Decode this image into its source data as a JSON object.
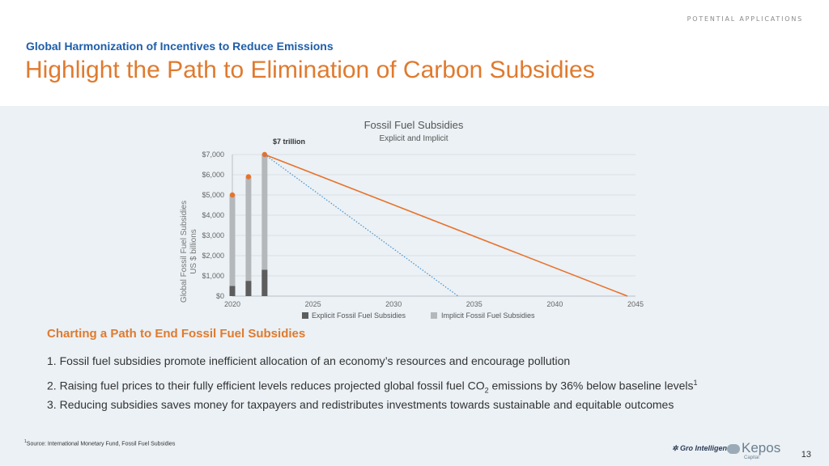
{
  "header": {
    "tag": "POTENTIAL APPLICATIONS",
    "subtitle": "Global Harmonization of Incentives to Reduce Emissions",
    "title": "Highlight the Path to Elimination of Carbon Subsidies"
  },
  "chart_data": {
    "type": "bar",
    "title": "Fossil Fuel Subsidies",
    "subtitle": "Explicit and Implicit",
    "ylabel_line1": "Global Fossil Fuel Subsidies",
    "ylabel_line2": "US $ billions",
    "annotation": "$7 trillion",
    "ylim": [
      0,
      7000
    ],
    "y_ticks": [
      "$0",
      "$1,000",
      "$2,000",
      "$3,000",
      "$4,000",
      "$5,000",
      "$6,000",
      "$7,000"
    ],
    "y_tick_values": [
      0,
      1000,
      2000,
      3000,
      4000,
      5000,
      6000,
      7000
    ],
    "xlim": [
      2020,
      2045
    ],
    "x_ticks": [
      "2020",
      "2025",
      "2030",
      "2035",
      "2040",
      "2045"
    ],
    "x_tick_values": [
      2020,
      2025,
      2030,
      2035,
      2040,
      2045
    ],
    "bars": [
      {
        "x": 2020,
        "explicit": 500,
        "total": 5000
      },
      {
        "x": 2021,
        "explicit": 750,
        "total": 5900
      },
      {
        "x": 2022,
        "explicit": 1300,
        "total": 7000
      }
    ],
    "solid_line": {
      "x": [
        2022,
        2044.5
      ],
      "y": [
        7000,
        0
      ],
      "color": "#e8722c"
    },
    "dotted_line": {
      "x": [
        2022,
        2034
      ],
      "y": [
        7000,
        0
      ],
      "color": "#4a90c8"
    },
    "legend": [
      {
        "label": "Explicit Fossil Fuel Subsidies",
        "color": "#5d5d5d"
      },
      {
        "label": "Implicit Fossil Fuel Subsidies",
        "color": "#b5b8bb"
      }
    ],
    "marker_color": "#e8722c",
    "grid": true
  },
  "section": {
    "heading": "Charting a Path to End Fossil Fuel Subsidies",
    "items": [
      {
        "num": "1.",
        "text": "Fossil fuel subsidies promote inefficient allocation of an economy’s resources and encourage pollution"
      },
      {
        "num": "2.",
        "text_a": "Raising fuel prices to their fully efficient levels reduces projected global fossil fuel CO",
        "sub": "2",
        "text_b": " emissions by 36% below baseline levels",
        "sup": "1"
      },
      {
        "num": "3.",
        "text": "Reducing subsidies saves money for taxpayers and redistributes investments towards sustainable and equitable outcomes"
      }
    ]
  },
  "footer": {
    "footnote_mark": "1",
    "footnote": "Source: International Monetary Fund, Fossil Fuel Subsidies",
    "logo_gro": "Gro Intelligence",
    "logo_kepos": "Kepos",
    "logo_capital": "Capital",
    "page_number": "13"
  }
}
